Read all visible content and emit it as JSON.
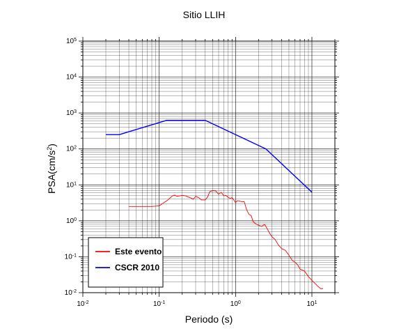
{
  "chart_data": {
    "type": "line",
    "title": "Sitio LLIH",
    "xlabel": "Periodo (s)",
    "ylabel": {
      "base": "PSA(cm/s",
      "sup": "2",
      "close": ")"
    },
    "xscale": "log",
    "yscale": "log",
    "xlim": [
      0.01,
      20
    ],
    "ylim": [
      0.01,
      100000
    ],
    "grid": true,
    "legend_position": "bottom-left",
    "x_ticks": [
      {
        "value": 0.01,
        "base": "10",
        "exp": "-2"
      },
      {
        "value": 0.1,
        "base": "10",
        "exp": "-1"
      },
      {
        "value": 1,
        "base": "10",
        "exp": "0"
      },
      {
        "value": 10,
        "base": "10",
        "exp": "1"
      }
    ],
    "y_ticks": [
      {
        "value": 0.01,
        "base": "10",
        "exp": "-2"
      },
      {
        "value": 0.1,
        "base": "10",
        "exp": "-1"
      },
      {
        "value": 1,
        "base": "10",
        "exp": "0"
      },
      {
        "value": 10,
        "base": "10",
        "exp": "1"
      },
      {
        "value": 100,
        "base": "10",
        "exp": "2"
      },
      {
        "value": 1000,
        "base": "10",
        "exp": "3"
      },
      {
        "value": 10000,
        "base": "10",
        "exp": "4"
      },
      {
        "value": 100000,
        "base": "10",
        "exp": "5"
      }
    ],
    "series": [
      {
        "name": "Este evento",
        "color": "#ff0000",
        "x": [
          0.04,
          0.06,
          0.08,
          0.1,
          0.11,
          0.12,
          0.13,
          0.14,
          0.15,
          0.16,
          0.17,
          0.18,
          0.2,
          0.22,
          0.24,
          0.26,
          0.28,
          0.3,
          0.33,
          0.36,
          0.4,
          0.43,
          0.46,
          0.5,
          0.55,
          0.6,
          0.65,
          0.7,
          0.75,
          0.8,
          0.85,
          0.9,
          0.95,
          1.0,
          1.05,
          1.1,
          1.2,
          1.3,
          1.4,
          1.5,
          1.6,
          1.7,
          1.8,
          2.0,
          2.2,
          2.4,
          2.6,
          2.8,
          3.0,
          3.3,
          3.6,
          4.0,
          4.5,
          5.0,
          5.5,
          6.0,
          6.5,
          7.0,
          8.0,
          9.0,
          10.0,
          11.0,
          12.0,
          13.0,
          14.0
        ],
        "y": [
          2.5,
          2.5,
          2.5,
          2.6,
          3.0,
          3.4,
          3.8,
          4.4,
          5.0,
          5.2,
          4.8,
          4.9,
          5.1,
          5.0,
          4.6,
          4.3,
          4.0,
          4.8,
          4.4,
          3.8,
          3.8,
          4.6,
          6.5,
          6.9,
          6.8,
          5.5,
          6.2,
          5.0,
          5.1,
          4.5,
          4.2,
          4.4,
          3.8,
          3.2,
          3.6,
          3.6,
          3.4,
          3.4,
          2.0,
          1.5,
          1.4,
          0.95,
          0.85,
          0.75,
          0.7,
          0.8,
          0.6,
          0.45,
          0.36,
          0.3,
          0.22,
          0.17,
          0.15,
          0.11,
          0.08,
          0.07,
          0.06,
          0.045,
          0.04,
          0.028,
          0.022,
          0.018,
          0.015,
          0.013,
          0.013
        ]
      },
      {
        "name": "CSCR 2010",
        "color": "#0000ff",
        "x": [
          0.02,
          0.03,
          0.125,
          0.4,
          2.5,
          10.0
        ],
        "y": [
          250,
          250,
          625,
          625,
          100,
          6.25
        ]
      }
    ]
  }
}
